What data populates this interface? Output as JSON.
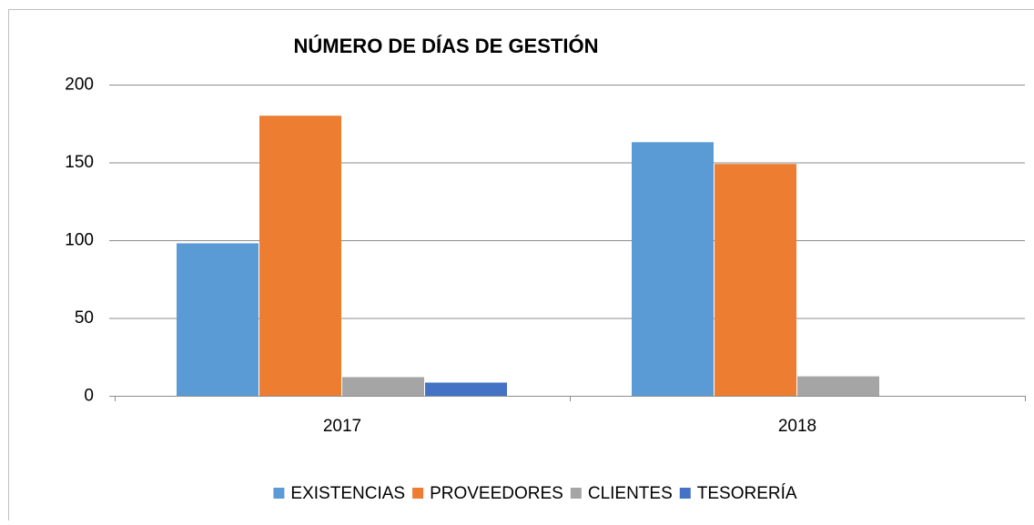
{
  "chart_data": {
    "type": "bar",
    "title": "NÚMERO DE DÍAS DE GESTIÓN",
    "categories": [
      "2017",
      "2018"
    ],
    "series": [
      {
        "name": "EXISTENCIAS",
        "color": "#5b9bd5",
        "values": [
          98,
          163
        ]
      },
      {
        "name": "PROVEEDORES",
        "color": "#ed7d31",
        "values": [
          180,
          149
        ]
      },
      {
        "name": "CLIENTES",
        "color": "#a5a5a5",
        "values": [
          12,
          12.5
        ]
      },
      {
        "name": "TESORERÍA",
        "color": "#4472c4",
        "values": [
          8.5,
          0
        ]
      }
    ],
    "ylim": [
      0,
      200
    ],
    "yticks": [
      0,
      50,
      100,
      150,
      200
    ],
    "grid": true,
    "legend": "bottom"
  }
}
